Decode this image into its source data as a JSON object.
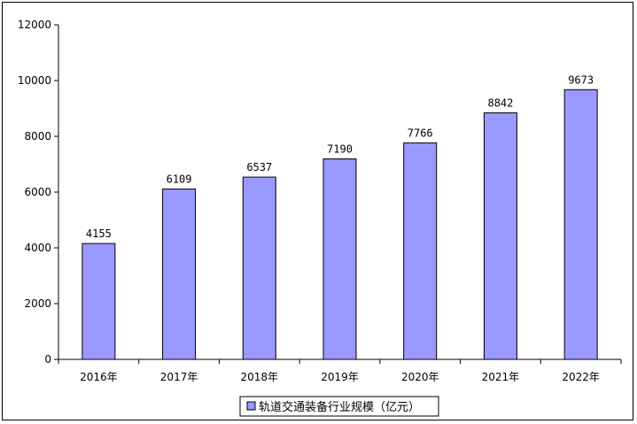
{
  "chart_data": {
    "type": "bar",
    "categories": [
      "2016年",
      "2017年",
      "2018年",
      "2019年",
      "2020年",
      "2021年",
      "2022年"
    ],
    "series": [
      {
        "name": "轨道交通装备行业规模（亿元）",
        "values": [
          4155,
          6109,
          6537,
          7190,
          7766,
          8842,
          9673
        ],
        "color": "#9999ff"
      }
    ],
    "data_labels": [
      "4155",
      "6109",
      "6537",
      "7190",
      "7766",
      "8842",
      "9673"
    ],
    "y_ticks": [
      "0",
      "2000",
      "4000",
      "6000",
      "8000",
      "10000",
      "12000"
    ],
    "ylim": [
      0,
      12000
    ],
    "grid": false,
    "legend_position": "bottom-center",
    "bar_outline_color": "#000000",
    "axis_color": "#000000"
  }
}
